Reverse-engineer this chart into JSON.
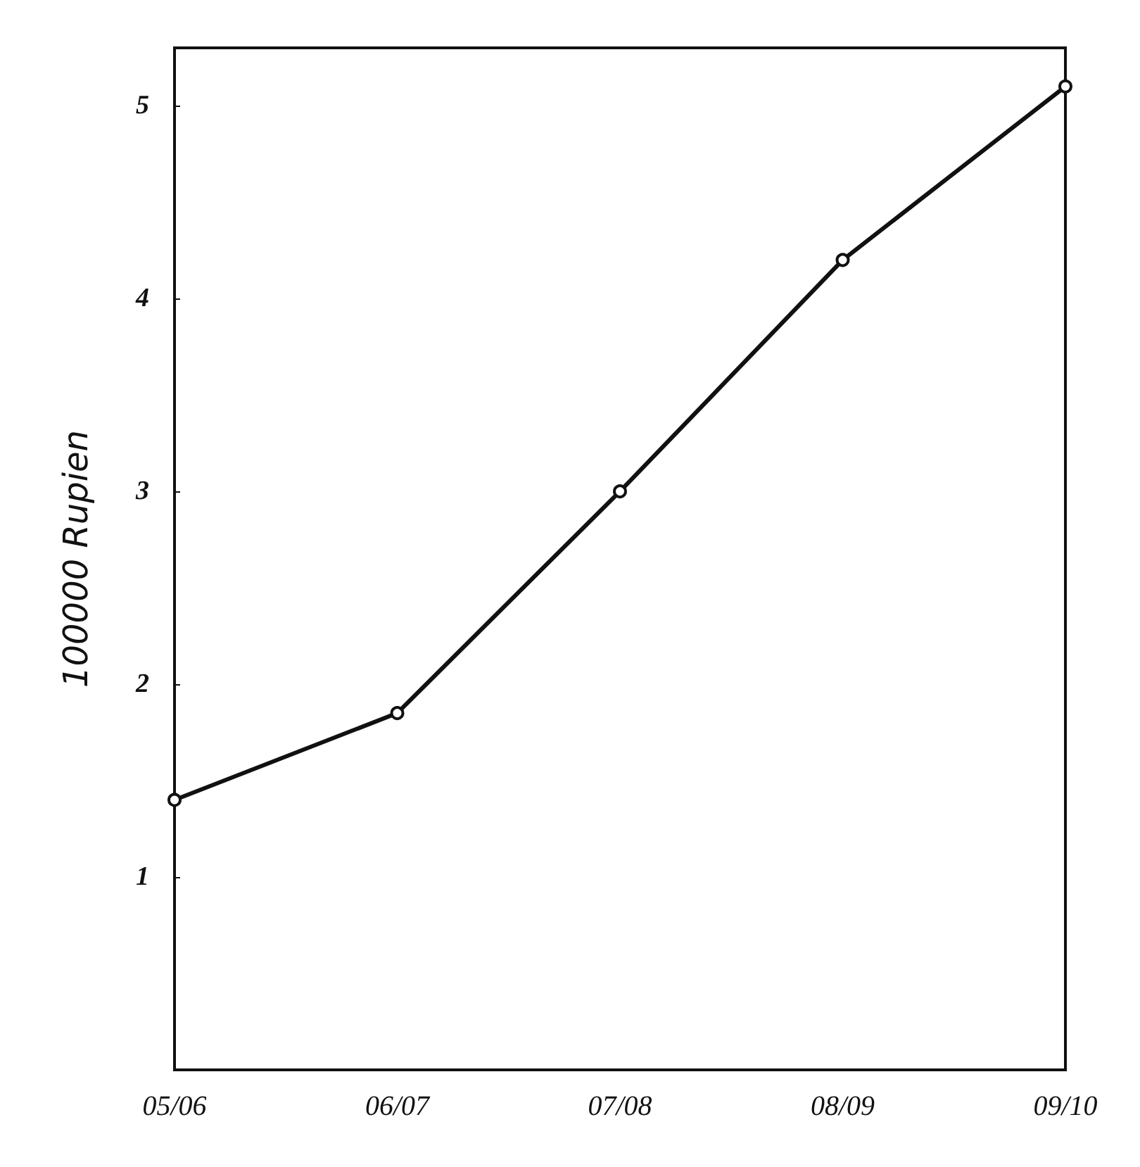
{
  "chart_data": {
    "type": "line",
    "ylabel": "100000 Rupien",
    "categories": [
      "05/06",
      "06/07",
      "07/08",
      "08/09",
      "09/10"
    ],
    "series": [
      {
        "color": "#111111",
        "values": [
          1.4,
          1.85,
          3,
          4.2,
          5.1
        ]
      }
    ],
    "ylim": [
      0,
      5.3
    ],
    "yticks": [
      1,
      2,
      3,
      4,
      5
    ],
    "grid": false,
    "marker": "circle",
    "line_style": "solid"
  }
}
